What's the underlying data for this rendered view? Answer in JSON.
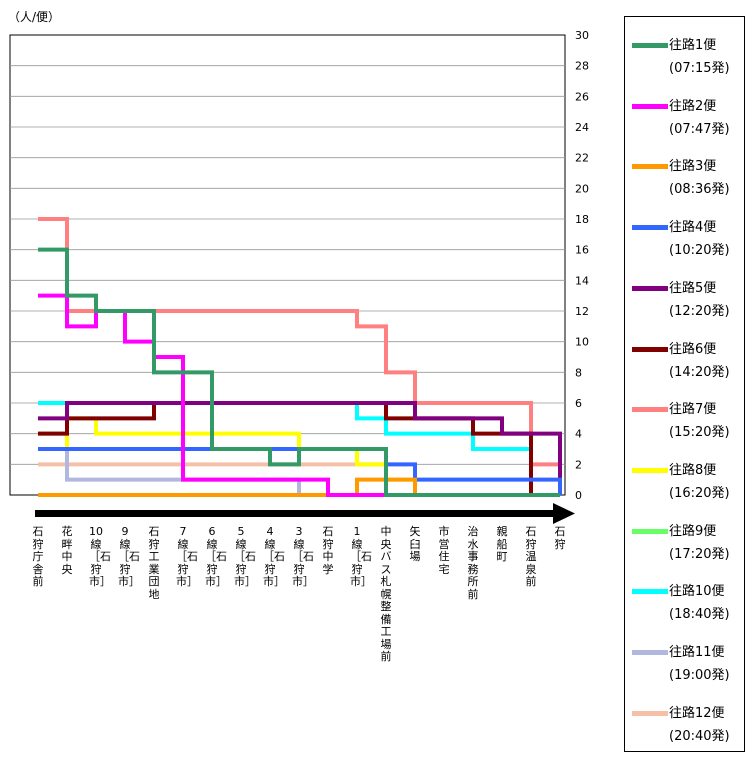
{
  "unit_label": "（人/便）",
  "chart_data": {
    "type": "line",
    "step": true,
    "y_axis_side": "right",
    "ylim": [
      0,
      30
    ],
    "yticks": [
      0,
      2,
      4,
      6,
      8,
      10,
      12,
      14,
      16,
      18,
      20,
      22,
      24,
      26,
      28,
      30
    ],
    "grid": true,
    "legend_position": "right",
    "categories": [
      "石狩庁舎前",
      "花畔中央",
      "10線［石狩市］",
      "9線［石狩市］",
      "石狩工業団地",
      "7線［石狩市］",
      "6線［石狩市］",
      "5線［石狩市］",
      "4線［石狩市］",
      "3線［石狩市］",
      "石狩中学",
      "1線［石狩市］",
      "中央バス札幌整備工場前",
      "矢臼場",
      "市営住宅",
      "治水事務所前",
      "親船町",
      "石狩温泉前",
      "石狩"
    ],
    "series": [
      {
        "name": "往路1便",
        "time": "(07:15発)",
        "color": "#339966",
        "values": [
          16,
          13,
          12,
          12,
          8,
          8,
          3,
          3,
          2,
          3,
          3,
          3,
          0,
          0,
          0,
          0,
          0,
          0,
          0
        ]
      },
      {
        "name": "往路2便",
        "time": "(07:47発)",
        "color": "#ff00ff",
        "values": [
          13,
          11,
          12,
          10,
          9,
          1,
          1,
          1,
          1,
          1,
          0,
          0,
          0,
          0,
          0,
          0,
          0,
          0,
          0
        ]
      },
      {
        "name": "往路3便",
        "time": "(08:36発)",
        "color": "#ff9900",
        "values": [
          0,
          0,
          0,
          0,
          0,
          0,
          0,
          0,
          0,
          0,
          0,
          1,
          1,
          0,
          0,
          0,
          0,
          0,
          0
        ]
      },
      {
        "name": "往路4便",
        "time": "(10:20発)",
        "color": "#3366ff",
        "values": [
          3,
          3,
          3,
          3,
          3,
          3,
          3,
          3,
          3,
          3,
          3,
          3,
          2,
          1,
          1,
          1,
          1,
          1,
          0
        ]
      },
      {
        "name": "往路5便",
        "time": "(12:20発)",
        "color": "#800080",
        "values": [
          5,
          6,
          6,
          6,
          6,
          6,
          6,
          6,
          6,
          6,
          6,
          6,
          6,
          5,
          5,
          5,
          4,
          4,
          0
        ]
      },
      {
        "name": "往路6便",
        "time": "(14:20発)",
        "color": "#800000",
        "values": [
          4,
          5,
          5,
          5,
          6,
          6,
          6,
          6,
          6,
          6,
          6,
          6,
          5,
          5,
          5,
          4,
          4,
          0,
          0
        ]
      },
      {
        "name": "往路7便",
        "time": "(15:20発)",
        "color": "#ff8080",
        "values": [
          18,
          12,
          12,
          12,
          12,
          12,
          12,
          12,
          12,
          12,
          12,
          11,
          8,
          6,
          6,
          6,
          6,
          2,
          0
        ]
      },
      {
        "name": "往路8便",
        "time": "(16:20発)",
        "color": "#ffff00",
        "values": [
          3,
          5,
          4,
          4,
          4,
          4,
          4,
          4,
          4,
          3,
          3,
          2,
          1,
          0,
          0,
          0,
          0,
          0,
          0
        ]
      },
      {
        "name": "往路9便",
        "time": "(17:20発)",
        "color": "#66ff66",
        "values": [
          4,
          3,
          3,
          3,
          3,
          3,
          3,
          3,
          3,
          3,
          3,
          3,
          0,
          0,
          0,
          0,
          0,
          0,
          0
        ]
      },
      {
        "name": "往路10便",
        "time": "(18:40発)",
        "color": "#00ffff",
        "values": [
          6,
          6,
          6,
          6,
          6,
          6,
          6,
          6,
          6,
          6,
          6,
          5,
          4,
          4,
          4,
          3,
          3,
          0,
          0
        ]
      },
      {
        "name": "往路11便",
        "time": "(19:00発)",
        "color": "#b0b8e0",
        "values": [
          3,
          1,
          1,
          1,
          1,
          1,
          1,
          1,
          1,
          0,
          0,
          0,
          0,
          0,
          0,
          0,
          0,
          0,
          0
        ]
      },
      {
        "name": "往路12便",
        "time": "(20:40発)",
        "color": "#f4c0a8",
        "values": [
          2,
          2,
          2,
          2,
          2,
          2,
          2,
          2,
          2,
          2,
          2,
          2,
          0,
          0,
          0,
          0,
          0,
          0,
          0
        ]
      }
    ]
  }
}
